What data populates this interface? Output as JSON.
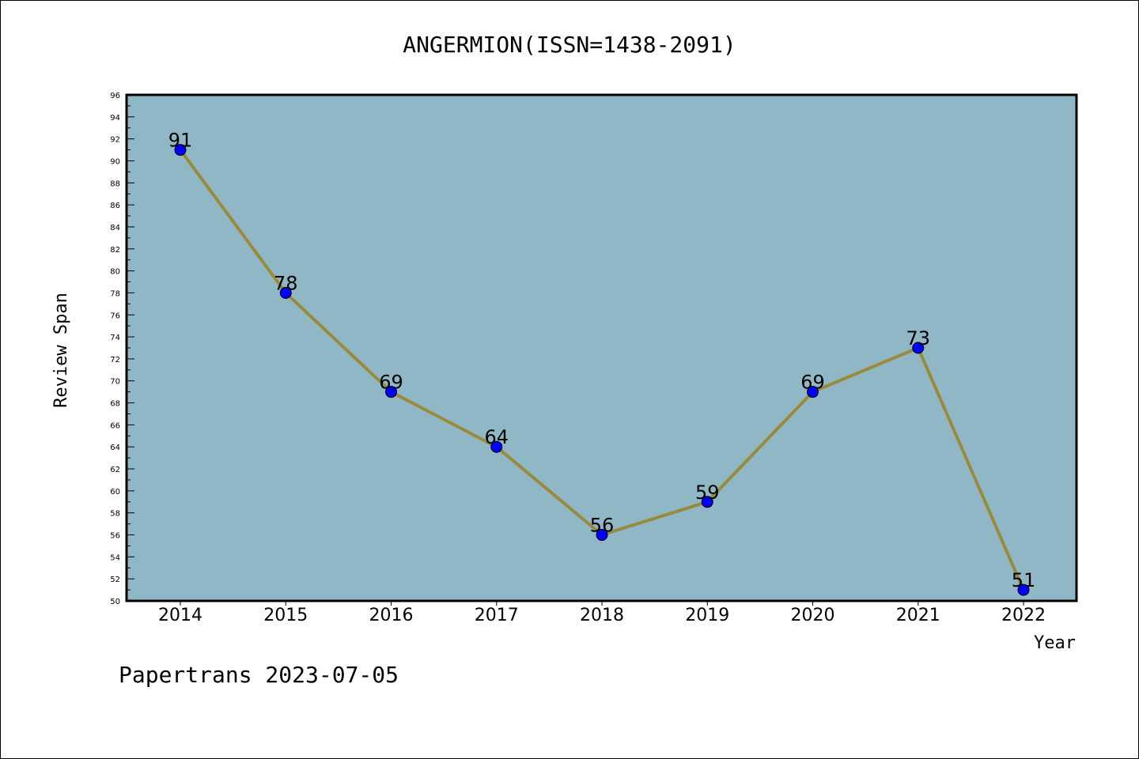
{
  "chart_data": {
    "type": "line",
    "title": "ANGERMION(ISSN=1438-2091)",
    "xlabel": "Year",
    "ylabel": "Review Span",
    "x": [
      "2014",
      "2015",
      "2016",
      "2017",
      "2018",
      "2019",
      "2020",
      "2021",
      "2022"
    ],
    "series": [
      {
        "values": [
          91,
          78,
          69,
          64,
          56,
          59,
          69,
          73,
          51
        ]
      }
    ],
    "ylim": [
      50,
      96
    ],
    "ytick_step": 2,
    "grid": false,
    "legend": "none",
    "colors": {
      "plot_background": "#8fb7c5",
      "line": "#9a8a3c",
      "marker": "#0000ff"
    }
  },
  "footer": "Papertrans 2023-07-05"
}
